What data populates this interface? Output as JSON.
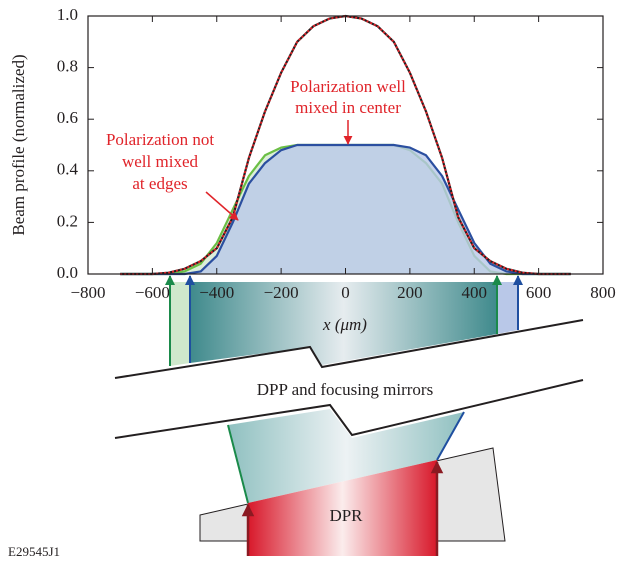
{
  "chart_data": {
    "type": "line",
    "y_label": "Beam profile (normalized)",
    "x_label": "x (μm)",
    "xlim": [
      -800,
      800
    ],
    "ylim": [
      0,
      1
    ],
    "xticks": [
      {
        "value": -800,
        "label": "−800"
      },
      {
        "value": -600,
        "label": "−600"
      },
      {
        "value": -400,
        "label": "−400"
      },
      {
        "value": -200,
        "label": "−200"
      },
      0,
      200,
      400,
      600,
      800
    ],
    "yticks": [
      {
        "value": 0,
        "label": "0.0"
      },
      {
        "value": 0.2,
        "label": "0.2"
      },
      {
        "value": 0.4,
        "label": "0.4"
      },
      {
        "value": 0.6,
        "label": "0.6"
      },
      {
        "value": 0.8,
        "label": "0.8"
      },
      {
        "value": 1,
        "label": "1.0"
      }
    ],
    "x": [
      -700,
      -650,
      -600,
      -550,
      -500,
      -450,
      -400,
      -350,
      -300,
      -250,
      -200,
      -150,
      -100,
      -50,
      0,
      50,
      100,
      150,
      200,
      250,
      300,
      350,
      400,
      450,
      500,
      550,
      600,
      650,
      700
    ],
    "series": [
      {
        "color": "#6cbf45",
        "fill": "#d3ead0",
        "values": [
          0,
          0,
          0,
          0,
          0.01,
          0.04,
          0.12,
          0.25,
          0.38,
          0.46,
          0.49,
          0.5,
          0.5,
          0.5,
          0.5,
          0.5,
          0.5,
          0.5,
          0.48,
          0.43,
          0.35,
          0.2,
          0.07,
          0.01,
          0,
          0,
          0,
          0,
          0
        ]
      },
      {
        "color": "#2b4fa0",
        "fill": "#b9c8e8",
        "values": [
          0,
          0,
          0,
          0,
          0,
          0.01,
          0.07,
          0.2,
          0.35,
          0.43,
          0.48,
          0.5,
          0.5,
          0.5,
          0.5,
          0.5,
          0.5,
          0.5,
          0.49,
          0.46,
          0.38,
          0.25,
          0.12,
          0.04,
          0.01,
          0,
          0,
          0,
          0
        ]
      },
      {
        "color": "#231f20",
        "values": [
          0,
          0,
          0,
          0.005,
          0.02,
          0.05,
          0.1,
          0.22,
          0.45,
          0.63,
          0.78,
          0.9,
          0.96,
          0.99,
          1,
          0.99,
          0.96,
          0.9,
          0.78,
          0.63,
          0.45,
          0.22,
          0.1,
          0.05,
          0.02,
          0.005,
          0,
          0,
          0
        ]
      },
      {
        "color": "#e0242a",
        "dashed": true,
        "values": [
          0,
          0,
          0,
          0.005,
          0.02,
          0.05,
          0.1,
          0.22,
          0.45,
          0.63,
          0.78,
          0.9,
          0.96,
          0.99,
          1,
          0.99,
          0.96,
          0.9,
          0.78,
          0.63,
          0.45,
          0.22,
          0.1,
          0.05,
          0.02,
          0.005,
          0,
          0,
          0
        ]
      }
    ],
    "annotations": [
      {
        "lines": [
          "Polarization well",
          "mixed in center"
        ]
      },
      {
        "lines": [
          "Polarization not",
          "well mixed",
          "at edges"
        ]
      }
    ]
  },
  "diagram": {
    "mirror_label": "DPP and focusing mirrors",
    "plate_label": "DPR"
  },
  "figure_id": "E29545J1"
}
